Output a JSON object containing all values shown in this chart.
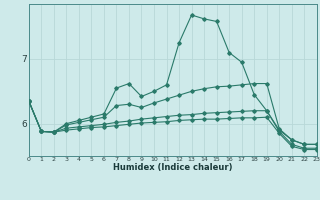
{
  "xlabel": "Humidex (Indice chaleur)",
  "bg_color": "#ceeaea",
  "grid_color": "#b8d8d8",
  "line_color": "#2a7a6a",
  "x_values": [
    0,
    1,
    2,
    3,
    4,
    5,
    6,
    7,
    8,
    9,
    10,
    11,
    12,
    13,
    14,
    15,
    16,
    17,
    18,
    19,
    20,
    21,
    22,
    23
  ],
  "series": [
    [
      6.35,
      5.88,
      5.87,
      6.0,
      6.05,
      6.1,
      6.15,
      6.55,
      6.62,
      6.42,
      6.5,
      6.6,
      7.25,
      7.68,
      7.62,
      7.58,
      7.1,
      6.95,
      6.45,
      6.2,
      5.9,
      5.75,
      5.68,
      5.68
    ],
    [
      6.35,
      5.88,
      5.87,
      5.98,
      6.02,
      6.06,
      6.1,
      6.28,
      6.3,
      6.25,
      6.32,
      6.38,
      6.44,
      6.5,
      6.54,
      6.57,
      6.58,
      6.6,
      6.62,
      6.62,
      5.92,
      5.75,
      5.68,
      5.68
    ],
    [
      6.35,
      5.88,
      5.87,
      5.93,
      5.95,
      5.97,
      5.99,
      6.02,
      6.04,
      6.07,
      6.09,
      6.11,
      6.13,
      6.14,
      6.16,
      6.17,
      6.18,
      6.19,
      6.2,
      6.2,
      5.88,
      5.68,
      5.62,
      5.62
    ],
    [
      6.35,
      5.88,
      5.87,
      5.9,
      5.92,
      5.94,
      5.95,
      5.97,
      5.99,
      6.01,
      6.02,
      6.03,
      6.05,
      6.06,
      6.07,
      6.07,
      6.08,
      6.09,
      6.09,
      6.1,
      5.85,
      5.65,
      5.6,
      5.6
    ]
  ],
  "yticks": [
    6,
    7
  ],
  "ylim": [
    5.5,
    7.85
  ],
  "xlim": [
    0,
    23
  ]
}
